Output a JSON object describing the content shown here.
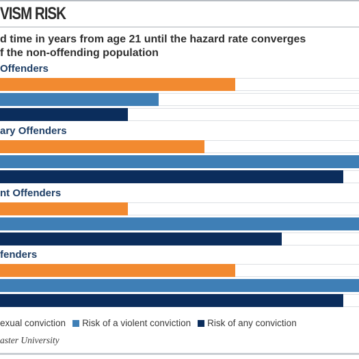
{
  "chart_data": {
    "type": "bar",
    "orientation": "horizontal",
    "title": "VISM RISK",
    "subtitle_lines": [
      "d time in years from age 21 until the hazard rate converges",
      "f the non-offending population"
    ],
    "xlim": [
      0,
      100
    ],
    "grid": false,
    "legend_placement": "bottom",
    "categories": [
      "Offenders",
      "ary Offenders",
      "nt Offenders",
      "fenders"
    ],
    "series": [
      {
        "name": "exual conviction",
        "color": "#f28a30",
        "values": [
          65.5,
          57.0,
          35.6,
          65.5
        ]
      },
      {
        "name": "Risk of a violent conviction",
        "color": "#3f7fb6",
        "values": [
          44.2,
          100,
          100,
          100
        ]
      },
      {
        "name": "Risk of any conviction",
        "color": "#0b2d5c",
        "values": [
          35.6,
          95.6,
          78.5,
          95.6
        ]
      }
    ],
    "source": "aster University"
  }
}
